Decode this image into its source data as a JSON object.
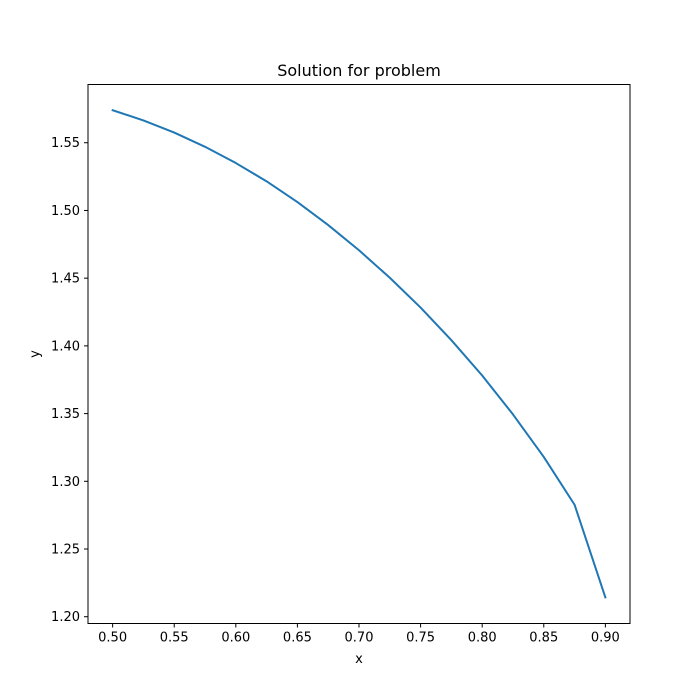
{
  "chart_data": {
    "type": "line",
    "title": "Solution for problem",
    "xlabel": "x",
    "ylabel": "y",
    "xlim": [
      0.48,
      0.92
    ],
    "ylim": [
      1.195,
      1.593
    ],
    "xticks": [
      0.5,
      0.55,
      0.6,
      0.65,
      0.7,
      0.75,
      0.8,
      0.85,
      0.9
    ],
    "xtick_labels": [
      "0.50",
      "0.55",
      "0.60",
      "0.65",
      "0.70",
      "0.75",
      "0.80",
      "0.85",
      "0.90"
    ],
    "yticks": [
      1.2,
      1.25,
      1.3,
      1.35,
      1.4,
      1.45,
      1.5,
      1.55
    ],
    "ytick_labels": [
      "1.20",
      "1.25",
      "1.30",
      "1.35",
      "1.40",
      "1.45",
      "1.50",
      "1.55"
    ],
    "grid": false,
    "series": [
      {
        "color": "#1f77b4",
        "x": [
          0.5,
          0.525,
          0.55,
          0.575,
          0.6,
          0.625,
          0.65,
          0.675,
          0.7,
          0.725,
          0.75,
          0.775,
          0.8,
          0.825,
          0.85,
          0.875,
          0.9
        ],
        "y": [
          1.574,
          1.5665,
          1.5575,
          1.547,
          1.535,
          1.5215,
          1.5062,
          1.4892,
          1.4706,
          1.4503,
          1.4283,
          1.4042,
          1.3781,
          1.3494,
          1.318,
          1.2827,
          1.2143
        ]
      }
    ]
  }
}
